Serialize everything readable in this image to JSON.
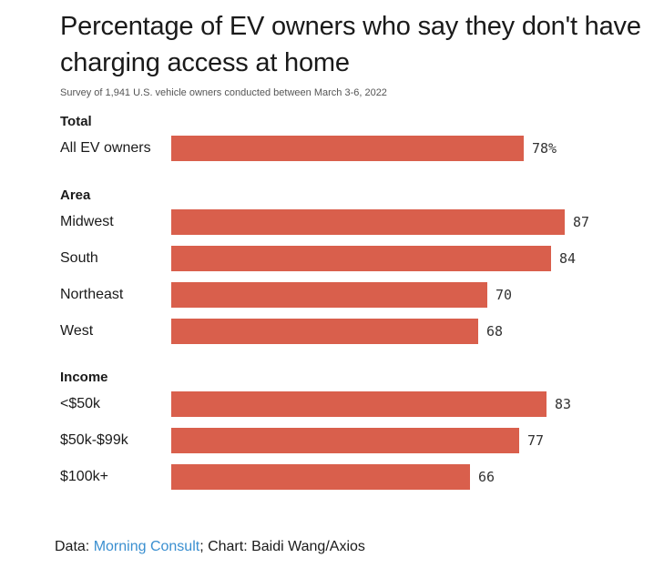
{
  "chart_data": {
    "type": "bar",
    "orientation": "horizontal",
    "title": "Percentage of EV owners who say they don't have charging access at home",
    "subtitle": "Survey of 1,941 U.S. vehicle owners conducted between March 3-6, 2022",
    "bar_color": "#d95f4c",
    "xlim": [
      0,
      100
    ],
    "groups": [
      {
        "name": "Total",
        "rows": [
          {
            "label": "All EV owners",
            "value": 78,
            "display": "78%"
          }
        ]
      },
      {
        "name": "Area",
        "rows": [
          {
            "label": "Midwest",
            "value": 87,
            "display": "87"
          },
          {
            "label": "South",
            "value": 84,
            "display": "84"
          },
          {
            "label": "Northeast",
            "value": 70,
            "display": "70"
          },
          {
            "label": "West",
            "value": 68,
            "display": "68"
          }
        ]
      },
      {
        "name": "Income",
        "rows": [
          {
            "label": "<$50k",
            "value": 83,
            "display": "83"
          },
          {
            "label": "$50k-$99k",
            "value": 77,
            "display": "77"
          },
          {
            "label": "$100k+",
            "value": 66,
            "display": "66"
          }
        ]
      }
    ]
  },
  "source": {
    "data_prefix": "Data: ",
    "data_link": "Morning Consult",
    "rest": "; Chart: Baidi Wang/Axios",
    "link_color": "#3a8fd0"
  }
}
